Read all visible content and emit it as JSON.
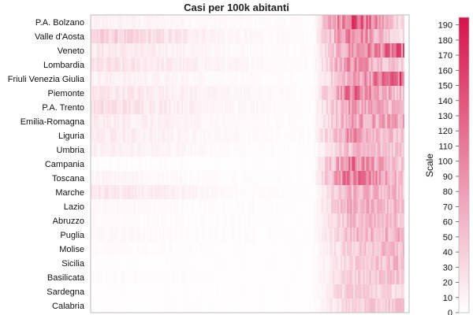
{
  "chart_data": {
    "type": "heatmap",
    "title": "Casi per 100k abitanti",
    "colorbar_label": "Scale",
    "regions": [
      "P.A. Bolzano",
      "Valle d'Aosta",
      "Veneto",
      "Lombardia",
      "Friuli Venezia Giulia",
      "Piemonte",
      "P.A. Trento",
      "Emilia-Romagna",
      "Liguria",
      "Umbria",
      "Campania",
      "Toscana",
      "Marche",
      "Lazio",
      "Abruzzo",
      "Puglia",
      "Molise",
      "Sicilia",
      "Basilicata",
      "Sardegna",
      "Calabria"
    ],
    "scale_min": 0,
    "scale_max": 195,
    "colorbar_ticks": [
      0,
      10,
      20,
      30,
      40,
      50,
      60,
      70,
      80,
      90,
      100,
      110,
      120,
      130,
      140,
      150,
      160,
      170,
      180,
      190
    ],
    "color_low": "#ffffff",
    "color_high": "#d6134a",
    "grid": false,
    "x_tick_labels_shown": false,
    "approx_profile": {
      "description": "approximate value per region across 5 periods of the time axis: early, mid-early, mid, late-mid, late",
      "values": [
        [
          10,
          5,
          3,
          150,
          40
        ],
        [
          35,
          8,
          3,
          120,
          30
        ],
        [
          18,
          6,
          3,
          85,
          115
        ],
        [
          22,
          8,
          3,
          100,
          45
        ],
        [
          12,
          5,
          2,
          70,
          130
        ],
        [
          20,
          8,
          3,
          120,
          55
        ],
        [
          25,
          8,
          3,
          80,
          60
        ],
        [
          15,
          6,
          3,
          75,
          70
        ],
        [
          15,
          6,
          3,
          95,
          45
        ],
        [
          12,
          4,
          2,
          55,
          50
        ],
        [
          3,
          2,
          2,
          110,
          45
        ],
        [
          8,
          3,
          2,
          120,
          55
        ],
        [
          18,
          5,
          2,
          60,
          55
        ],
        [
          6,
          3,
          2,
          65,
          55
        ],
        [
          5,
          3,
          2,
          55,
          50
        ],
        [
          6,
          3,
          2,
          55,
          65
        ],
        [
          4,
          2,
          2,
          40,
          55
        ],
        [
          2,
          2,
          2,
          35,
          55
        ],
        [
          3,
          2,
          2,
          40,
          50
        ],
        [
          2,
          2,
          2,
          45,
          30
        ],
        [
          2,
          2,
          2,
          35,
          45
        ]
      ]
    }
  }
}
